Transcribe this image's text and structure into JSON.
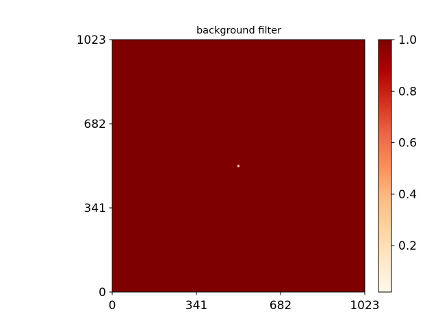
{
  "chart_data": {
    "type": "heatmap",
    "title": "background filter",
    "xlabel": "",
    "ylabel": "",
    "xlim": [
      0,
      1023
    ],
    "ylim": [
      0,
      1023
    ],
    "x_ticks": [
      0,
      341,
      682,
      1023
    ],
    "y_ticks": [
      0,
      341,
      682,
      1023
    ],
    "x_tick_labels": [
      "0",
      "341",
      "682",
      "1023"
    ],
    "y_tick_labels": [
      "0",
      "341",
      "682",
      "1023"
    ],
    "background_value": 1.0,
    "center_feature": {
      "x": 511,
      "y": 511,
      "min_value": 0.0,
      "radius": 6
    },
    "colormap": "OrRd",
    "colorbar": {
      "range": [
        0.02,
        1.0
      ],
      "ticks": [
        0.2,
        0.4,
        0.6,
        0.8,
        1.0
      ],
      "tick_labels": [
        "0.2",
        "0.4",
        "0.6",
        "0.8",
        "1.0"
      ],
      "placement": "right"
    },
    "grid": false,
    "legend": "none"
  }
}
